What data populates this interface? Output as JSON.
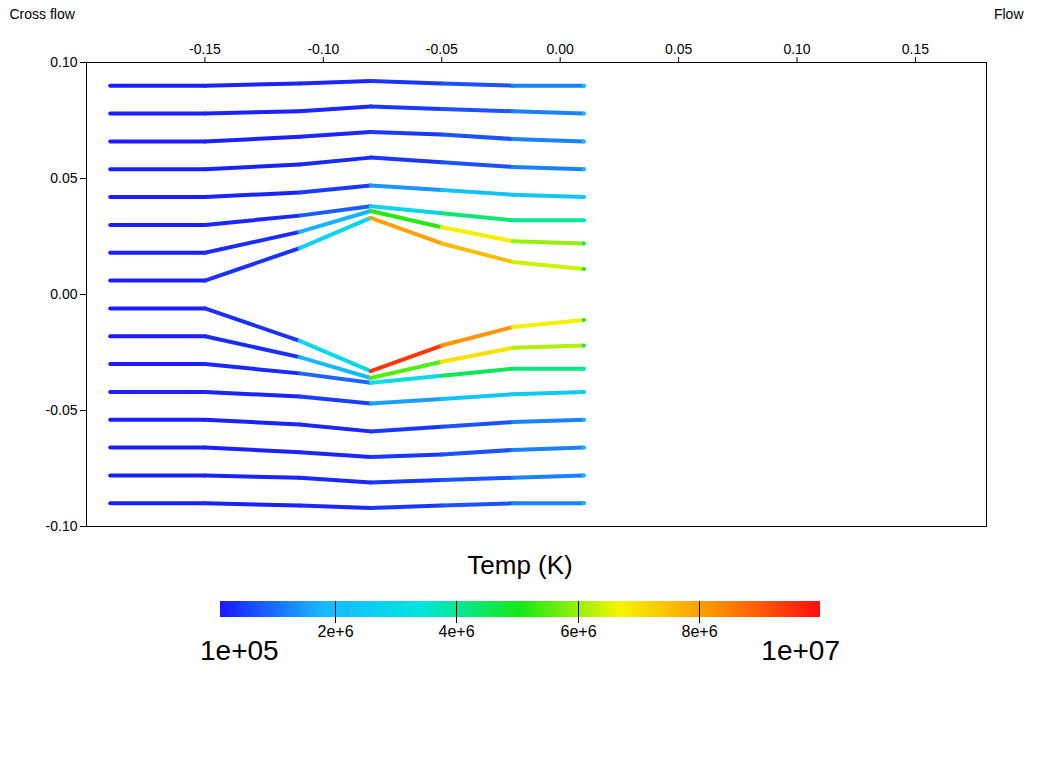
{
  "chart_data": {
    "type": "streamline",
    "x_label": "Flow",
    "y_label": "Cross flow",
    "xlim": [
      -0.2,
      0.18
    ],
    "ylim": [
      -0.1,
      0.1
    ],
    "xticks": [
      {
        "value": -0.15,
        "label": "-0.15"
      },
      {
        "value": -0.1,
        "label": "-0.10"
      },
      {
        "value": -0.05,
        "label": "-0.05"
      },
      {
        "value": 0,
        "label": "0.00"
      },
      {
        "value": 0.05,
        "label": "0.05"
      },
      {
        "value": 0.1,
        "label": "0.10"
      },
      {
        "value": 0.15,
        "label": "0.15"
      }
    ],
    "yticks": [
      {
        "value": -0.1,
        "label": "-0.10"
      },
      {
        "value": -0.05,
        "label": "-0.05"
      },
      {
        "value": 0,
        "label": "0.00"
      },
      {
        "value": 0.05,
        "label": "0.05"
      },
      {
        "value": 0.1,
        "label": "0.10"
      }
    ],
    "colorbar": {
      "title": "Temp (K)",
      "range": [
        100000,
        10000000
      ],
      "range_labels": [
        "1e+05",
        "1e+07"
      ],
      "ticks": [
        {
          "value": 2000000,
          "label": "2e+6"
        },
        {
          "value": 4000000,
          "label": "4e+6"
        },
        {
          "value": 6000000,
          "label": "6e+6"
        },
        {
          "value": 8000000,
          "label": "8e+6"
        }
      ]
    },
    "streamlines": [
      {
        "points": [
          [
            -0.19,
            -0.09,
            150000
          ],
          [
            -0.15,
            -0.09,
            180000
          ],
          [
            -0.11,
            -0.091,
            250000
          ],
          [
            -0.08,
            -0.092,
            400000
          ],
          [
            -0.05,
            -0.091,
            700000
          ],
          [
            -0.02,
            -0.09,
            1200000
          ],
          [
            0.01,
            -0.09,
            2000000
          ]
        ]
      },
      {
        "points": [
          [
            -0.19,
            -0.078,
            150000
          ],
          [
            -0.15,
            -0.078,
            180000
          ],
          [
            -0.11,
            -0.079,
            250000
          ],
          [
            -0.08,
            -0.081,
            400000
          ],
          [
            -0.05,
            -0.08,
            700000
          ],
          [
            -0.02,
            -0.079,
            1200000
          ],
          [
            0.01,
            -0.078,
            2000000
          ]
        ]
      },
      {
        "points": [
          [
            -0.19,
            -0.066,
            150000
          ],
          [
            -0.15,
            -0.066,
            180000
          ],
          [
            -0.11,
            -0.068,
            250000
          ],
          [
            -0.08,
            -0.07,
            400000
          ],
          [
            -0.05,
            -0.069,
            700000
          ],
          [
            -0.02,
            -0.067,
            1200000
          ],
          [
            0.01,
            -0.066,
            2000000
          ]
        ]
      },
      {
        "points": [
          [
            -0.19,
            -0.054,
            150000
          ],
          [
            -0.15,
            -0.054,
            180000
          ],
          [
            -0.11,
            -0.056,
            250000
          ],
          [
            -0.08,
            -0.059,
            400000
          ],
          [
            -0.05,
            -0.057,
            700000
          ],
          [
            -0.02,
            -0.055,
            1200000
          ],
          [
            0.01,
            -0.054,
            2000000
          ]
        ]
      },
      {
        "points": [
          [
            -0.19,
            -0.042,
            150000
          ],
          [
            -0.15,
            -0.042,
            200000
          ],
          [
            -0.11,
            -0.044,
            500000
          ],
          [
            -0.08,
            -0.047,
            1500000
          ],
          [
            -0.05,
            -0.045,
            2200000
          ],
          [
            -0.02,
            -0.043,
            2500000
          ],
          [
            0.01,
            -0.042,
            2600000
          ]
        ]
      },
      {
        "points": [
          [
            -0.19,
            -0.03,
            150000
          ],
          [
            -0.15,
            -0.03,
            250000
          ],
          [
            -0.11,
            -0.034,
            900000
          ],
          [
            -0.08,
            -0.038,
            3000000
          ],
          [
            -0.05,
            -0.035,
            4500000
          ],
          [
            -0.02,
            -0.032,
            4200000
          ],
          [
            0.01,
            -0.032,
            3200000
          ]
        ]
      },
      {
        "points": [
          [
            -0.19,
            -0.018,
            150000
          ],
          [
            -0.15,
            -0.018,
            300000
          ],
          [
            -0.11,
            -0.027,
            1800000
          ],
          [
            -0.08,
            -0.036,
            5500000
          ],
          [
            -0.05,
            -0.029,
            7000000
          ],
          [
            -0.02,
            -0.023,
            6200000
          ],
          [
            0.01,
            -0.022,
            4500000
          ]
        ]
      },
      {
        "points": [
          [
            -0.19,
            -0.006,
            150000
          ],
          [
            -0.15,
            -0.006,
            350000
          ],
          [
            -0.11,
            -0.02,
            3000000
          ],
          [
            -0.08,
            -0.033,
            9500000
          ],
          [
            -0.05,
            -0.022,
            8200000
          ],
          [
            -0.02,
            -0.014,
            6800000
          ],
          [
            0.01,
            -0.011,
            5000000
          ]
        ]
      },
      {
        "points": [
          [
            -0.19,
            0.006,
            150000
          ],
          [
            -0.15,
            0.006,
            350000
          ],
          [
            -0.11,
            0.02,
            2800000
          ],
          [
            -0.08,
            0.033,
            8000000
          ],
          [
            -0.05,
            0.022,
            7600000
          ],
          [
            -0.02,
            0.014,
            6400000
          ],
          [
            0.01,
            0.011,
            4800000
          ]
        ]
      },
      {
        "points": [
          [
            -0.19,
            0.018,
            150000
          ],
          [
            -0.15,
            0.018,
            300000
          ],
          [
            -0.11,
            0.027,
            1700000
          ],
          [
            -0.08,
            0.036,
            5200000
          ],
          [
            -0.05,
            0.029,
            6800000
          ],
          [
            -0.02,
            0.023,
            6000000
          ],
          [
            0.01,
            0.022,
            4300000
          ]
        ]
      },
      {
        "points": [
          [
            -0.19,
            0.03,
            150000
          ],
          [
            -0.15,
            0.03,
            250000
          ],
          [
            -0.11,
            0.034,
            800000
          ],
          [
            -0.08,
            0.038,
            2800000
          ],
          [
            -0.05,
            0.035,
            4300000
          ],
          [
            -0.02,
            0.032,
            4000000
          ],
          [
            0.01,
            0.032,
            3100000
          ]
        ]
      },
      {
        "points": [
          [
            -0.19,
            0.042,
            150000
          ],
          [
            -0.15,
            0.042,
            200000
          ],
          [
            -0.11,
            0.044,
            450000
          ],
          [
            -0.08,
            0.047,
            1400000
          ],
          [
            -0.05,
            0.045,
            2100000
          ],
          [
            -0.02,
            0.043,
            2400000
          ],
          [
            0.01,
            0.042,
            2500000
          ]
        ]
      },
      {
        "points": [
          [
            -0.19,
            0.054,
            150000
          ],
          [
            -0.15,
            0.054,
            180000
          ],
          [
            -0.11,
            0.056,
            250000
          ],
          [
            -0.08,
            0.059,
            400000
          ],
          [
            -0.05,
            0.057,
            700000
          ],
          [
            -0.02,
            0.055,
            1200000
          ],
          [
            0.01,
            0.054,
            2000000
          ]
        ]
      },
      {
        "points": [
          [
            -0.19,
            0.066,
            150000
          ],
          [
            -0.15,
            0.066,
            180000
          ],
          [
            -0.11,
            0.068,
            250000
          ],
          [
            -0.08,
            0.07,
            400000
          ],
          [
            -0.05,
            0.069,
            700000
          ],
          [
            -0.02,
            0.067,
            1200000
          ],
          [
            0.01,
            0.066,
            2000000
          ]
        ]
      },
      {
        "points": [
          [
            -0.19,
            0.078,
            150000
          ],
          [
            -0.15,
            0.078,
            180000
          ],
          [
            -0.11,
            0.079,
            250000
          ],
          [
            -0.08,
            0.081,
            400000
          ],
          [
            -0.05,
            0.08,
            700000
          ],
          [
            -0.02,
            0.079,
            1200000
          ],
          [
            0.01,
            0.078,
            2000000
          ]
        ]
      },
      {
        "points": [
          [
            -0.19,
            0.09,
            150000
          ],
          [
            -0.15,
            0.09,
            180000
          ],
          [
            -0.11,
            0.091,
            250000
          ],
          [
            -0.08,
            0.092,
            400000
          ],
          [
            -0.05,
            0.091,
            700000
          ],
          [
            -0.02,
            0.09,
            1200000
          ],
          [
            0.01,
            0.09,
            2000000
          ]
        ]
      }
    ]
  }
}
